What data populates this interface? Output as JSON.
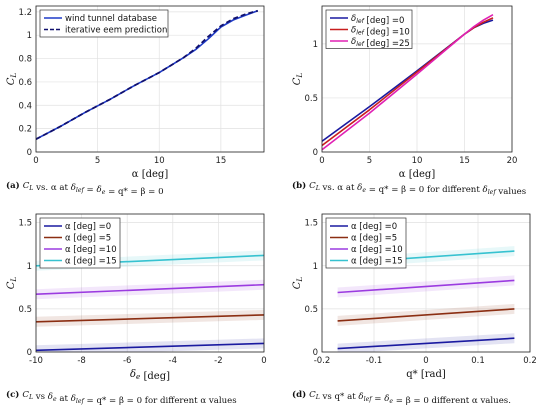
{
  "chart_data": [
    {
      "id": "a",
      "type": "line",
      "xlabel": "α [deg]",
      "ylabel": "C_L",
      "xlim": [
        0,
        18.5
      ],
      "ylim": [
        0,
        1.25
      ],
      "xticks": [
        0,
        5,
        10,
        15
      ],
      "yticks": [
        0,
        0.2,
        0.4,
        0.6,
        0.8,
        1,
        1.2
      ],
      "xticklabels": [
        "0",
        "5",
        "10",
        "15"
      ],
      "yticklabels": [
        "0",
        "0.2",
        "0.4",
        "0.6",
        "0.8",
        "1",
        "1.2"
      ],
      "grid": true,
      "legend_position": "top-left",
      "caption_label": "(a)",
      "caption_text": "C_L vs. α at δ_lef = δ_e = q* = β = 0",
      "series": [
        {
          "name": "wind tunnel database",
          "style": "solid",
          "color": "#1f3cc8",
          "x": [
            0,
            2,
            4,
            6,
            8,
            10,
            12,
            13,
            14,
            15,
            16,
            17,
            18
          ],
          "y": [
            0.11,
            0.22,
            0.34,
            0.45,
            0.57,
            0.68,
            0.81,
            0.88,
            0.97,
            1.07,
            1.13,
            1.17,
            1.21
          ]
        },
        {
          "name": "iterative eem prediction",
          "style": "dashed",
          "color": "#10106e",
          "x": [
            0,
            2,
            4,
            6,
            8,
            10,
            12,
            13,
            14,
            15,
            16,
            17,
            18
          ],
          "y": [
            0.11,
            0.22,
            0.34,
            0.45,
            0.57,
            0.68,
            0.81,
            0.89,
            0.99,
            1.08,
            1.14,
            1.18,
            1.21
          ]
        }
      ]
    },
    {
      "id": "b",
      "type": "line",
      "xlabel": "α [deg]",
      "ylabel": "C_L",
      "xlim": [
        0,
        20
      ],
      "ylim": [
        0,
        1.35
      ],
      "xticks": [
        0,
        5,
        10,
        15,
        20
      ],
      "yticks": [
        0,
        0.5,
        1
      ],
      "xticklabels": [
        "0",
        "5",
        "10",
        "15",
        "20"
      ],
      "yticklabels": [
        "0",
        "0.5",
        "1"
      ],
      "grid": true,
      "legend_position": "top-left",
      "caption_label": "(b)",
      "caption_text": "C_L vs. α at δ_e = q* = β = 0 for different δ_lef values",
      "series": [
        {
          "name": "δ_lef [deg] =0",
          "color": "#1a1aa0",
          "x": [
            0,
            5,
            10,
            15,
            16,
            17,
            18
          ],
          "y": [
            0.1,
            0.42,
            0.75,
            1.09,
            1.15,
            1.19,
            1.22
          ]
        },
        {
          "name": "δ_lef [deg] =10",
          "color": "#c81e1e",
          "x": [
            0,
            5,
            10,
            15,
            16,
            17,
            18
          ],
          "y": [
            0.06,
            0.39,
            0.74,
            1.09,
            1.15,
            1.2,
            1.24
          ]
        },
        {
          "name": "δ_lef [deg] =25",
          "color": "#e020b4",
          "x": [
            0,
            5,
            10,
            15,
            16,
            17,
            18
          ],
          "y": [
            0.02,
            0.36,
            0.72,
            1.09,
            1.16,
            1.22,
            1.27
          ]
        }
      ]
    },
    {
      "id": "c",
      "type": "line",
      "xlabel": "δ_e [deg]",
      "ylabel": "C_L",
      "xlim": [
        -10,
        0
      ],
      "ylim": [
        0,
        1.6
      ],
      "xticks": [
        -10,
        -8,
        -6,
        -4,
        -2,
        0
      ],
      "yticks": [
        0,
        0.5,
        1,
        1.5
      ],
      "xticklabels": [
        "-10",
        "-8",
        "-6",
        "-4",
        "-2",
        "0"
      ],
      "yticklabels": [
        "0",
        "0.5",
        "1",
        "1.5"
      ],
      "grid": true,
      "legend_position": "top-left",
      "caption_label": "(c)",
      "caption_text": "C_L vs δ_e at δ_lef = q* = β = 0 for different α values",
      "series": [
        {
          "name": "α [deg] =0",
          "color": "#1a1aa0",
          "x": [
            -10,
            0
          ],
          "y": [
            0.02,
            0.1
          ]
        },
        {
          "name": "α [deg] =5",
          "color": "#8b2e12",
          "x": [
            -10,
            0
          ],
          "y": [
            0.35,
            0.43
          ]
        },
        {
          "name": "α [deg] =10",
          "color": "#9b3be0",
          "x": [
            -10,
            0
          ],
          "y": [
            0.67,
            0.78
          ]
        },
        {
          "name": "α [deg] =15",
          "color": "#36c2d0",
          "x": [
            -10,
            0
          ],
          "y": [
            1.0,
            1.12
          ]
        }
      ]
    },
    {
      "id": "d",
      "type": "line",
      "xlabel": "q* [rad]",
      "ylabel": "C_L",
      "xlim": [
        -0.2,
        0.2
      ],
      "ylim": [
        0,
        1.6
      ],
      "xticks": [
        -0.2,
        -0.1,
        0,
        0.1,
        0.2
      ],
      "yticks": [
        0,
        0.5,
        1,
        1.5
      ],
      "xticklabels": [
        "-0.2",
        "-0.1",
        "0",
        "0.1",
        "0.2"
      ],
      "yticklabels": [
        "0",
        "0.5",
        "1",
        "1.5"
      ],
      "grid": true,
      "legend_position": "top-left",
      "caption_label": "(d)",
      "caption_text": "C_L vs q* at δ_lef = δ_e = β = 0 different α values.",
      "series": [
        {
          "name": "α [deg] =0",
          "color": "#1a1aa0",
          "x": [
            -0.17,
            0.17
          ],
          "y": [
            0.04,
            0.16
          ]
        },
        {
          "name": "α [deg] =5",
          "color": "#8b2e12",
          "x": [
            -0.17,
            0.17
          ],
          "y": [
            0.36,
            0.5
          ]
        },
        {
          "name": "α [deg] =10",
          "color": "#9b3be0",
          "x": [
            -0.17,
            0.17
          ],
          "y": [
            0.69,
            0.83
          ]
        },
        {
          "name": "α [deg] =15",
          "color": "#36c2d0",
          "x": [
            -0.17,
            0.17
          ],
          "y": [
            1.03,
            1.17
          ]
        }
      ]
    }
  ]
}
